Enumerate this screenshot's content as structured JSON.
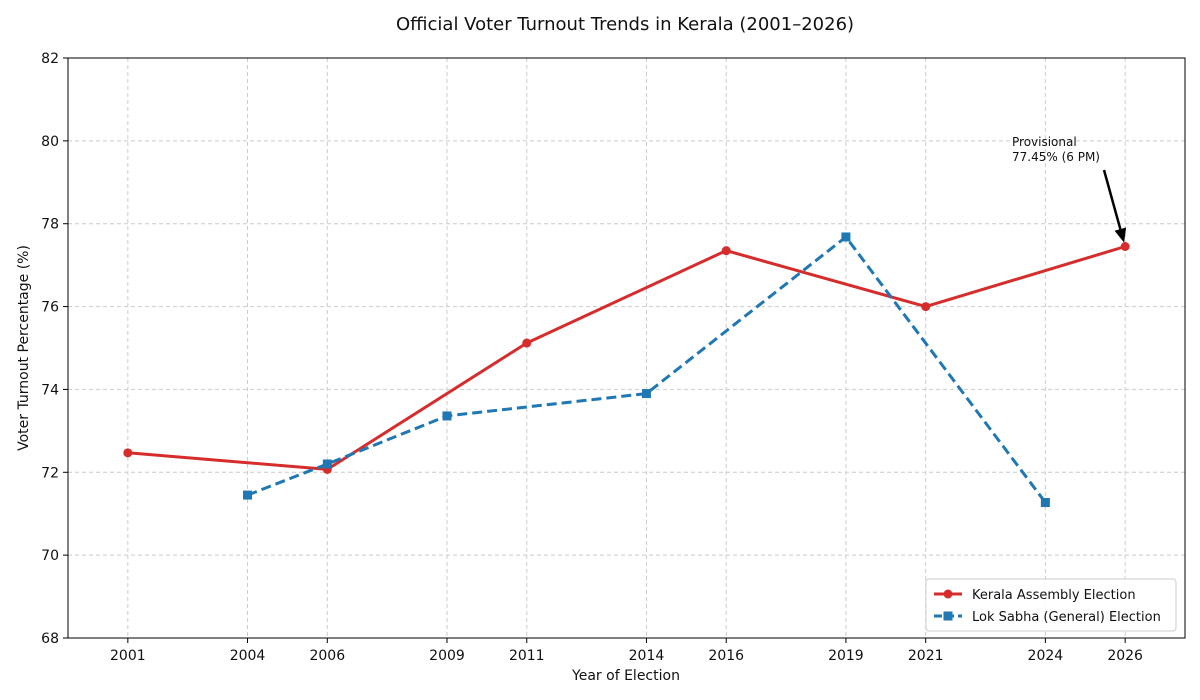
{
  "chart_data": {
    "type": "line",
    "title": "Official Voter Turnout Trends in Kerala (2001–2026)",
    "xlabel": "Year of Election",
    "ylabel": "Voter Turnout Percentage (%)",
    "xlim": [
      1999.5,
      2027.5
    ],
    "ylim": [
      68,
      82
    ],
    "xticks": [
      2001,
      2004,
      2006,
      2009,
      2011,
      2014,
      2016,
      2019,
      2021,
      2024,
      2026
    ],
    "yticks": [
      68,
      70,
      72,
      74,
      76,
      78,
      80,
      82
    ],
    "grid": true,
    "legend_position": "lower-right",
    "series": [
      {
        "name": "Kerala Assembly Election",
        "color": "#d62c2c",
        "marker": "circle",
        "linestyle": "solid",
        "x": [
          2001,
          2006,
          2011,
          2016,
          2021,
          2026
        ],
        "y": [
          72.47,
          72.07,
          75.12,
          77.35,
          76.0,
          77.45
        ]
      },
      {
        "name": "Lok Sabha (General) Election",
        "color": "#1f77b4",
        "marker": "square",
        "linestyle": "dashed",
        "x": [
          2004,
          2006,
          2009,
          2014,
          2019,
          2024
        ],
        "y": [
          71.45,
          72.2,
          73.36,
          73.9,
          77.68,
          71.27
        ]
      }
    ],
    "annotation": {
      "line1": "Provisional",
      "line2": "77.45% (6 PM)",
      "target": [
        2026,
        77.45
      ]
    }
  }
}
